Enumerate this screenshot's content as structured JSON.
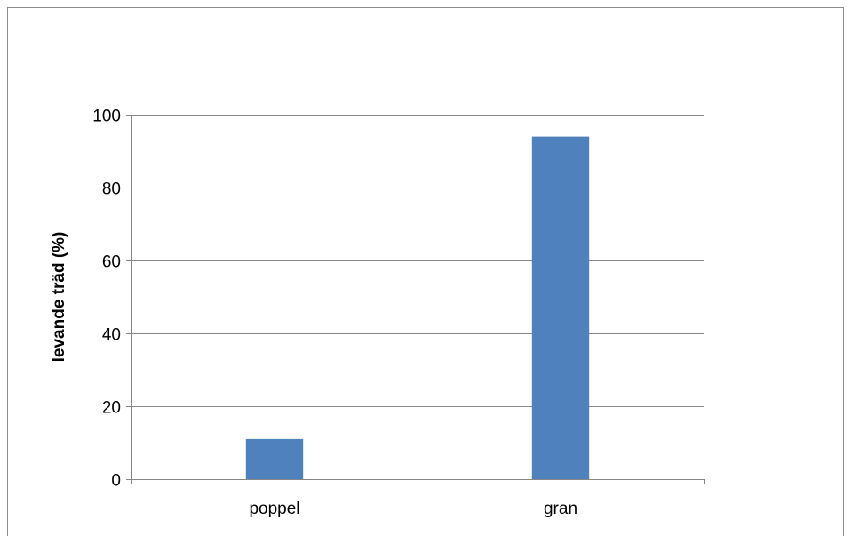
{
  "chart_data": {
    "type": "bar",
    "title": "",
    "xlabel": "",
    "ylabel": "levande träd (%)",
    "categories": [
      "poppel",
      "gran"
    ],
    "values": [
      11,
      94
    ],
    "ylim": [
      0,
      100
    ],
    "yticks": [
      0,
      20,
      40,
      60,
      80,
      100
    ],
    "grid": true,
    "legend": "none",
    "bar_color": "#4f81bd",
    "grid_color": "#868686"
  }
}
